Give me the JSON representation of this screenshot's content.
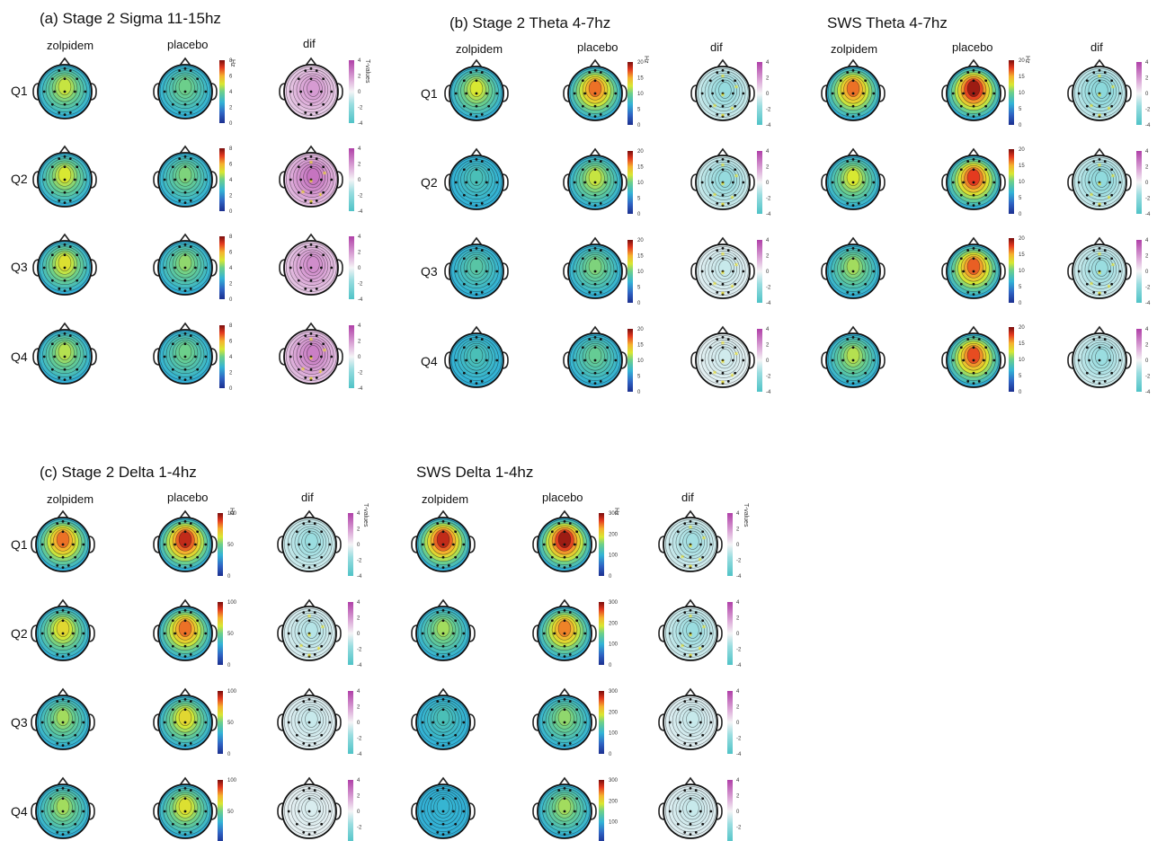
{
  "columns": [
    "zolpidem",
    "placebo",
    "dif"
  ],
  "rows": [
    "Q1",
    "Q2",
    "Q3",
    "Q4"
  ],
  "panels": [
    {
      "title": "(a)   Stage 2     Sigma 11-15hz",
      "unit": "Hz",
      "dif_unit": "T-values",
      "power_ticks": [
        "8",
        "6",
        "4",
        "2",
        "0"
      ],
      "dif_ticks": [
        "4",
        "2",
        "0",
        "-2",
        "-4"
      ],
      "maps": [
        {
          "z": 0.6,
          "p": 0.5,
          "d": 0.74,
          "ds": 0,
          "s": false
        },
        {
          "z": 0.62,
          "p": 0.52,
          "d": 0.85,
          "ds": 1,
          "s": true
        },
        {
          "z": 0.64,
          "p": 0.54,
          "d": 0.78,
          "ds": 0,
          "s": false
        },
        {
          "z": 0.58,
          "p": 0.5,
          "d": 0.82,
          "ds": 2,
          "s": true
        }
      ]
    },
    {
      "title": "(b) Stage 2     Theta 4-7hz",
      "unit": "Hz",
      "power_ticks": [
        "20",
        "15",
        "10",
        "5",
        "0"
      ],
      "dif_ticks": [
        "4",
        "2",
        "0",
        "-2",
        "-4"
      ],
      "maps": [
        {
          "z": 0.62,
          "p": 0.82,
          "d": 0.28,
          "ds": 3,
          "s": true
        },
        {
          "z": 0.4,
          "p": 0.6,
          "d": 0.28,
          "ds": 4,
          "s": true
        },
        {
          "z": 0.44,
          "p": 0.52,
          "d": 0.4,
          "ds": 5,
          "s": true
        },
        {
          "z": 0.4,
          "p": 0.48,
          "d": 0.42,
          "ds": 6,
          "s": true
        }
      ]
    },
    {
      "title": "SWS     Theta 4-7hz",
      "unit": "Hz",
      "power_ticks": [
        "20",
        "15",
        "10",
        "5",
        "0"
      ],
      "dif_ticks": [
        "4",
        "2",
        "0",
        "-2",
        "-4"
      ],
      "maps": [
        {
          "z": 0.82,
          "p": 0.96,
          "d": 0.24,
          "ds": 7,
          "s": true
        },
        {
          "z": 0.62,
          "p": 0.88,
          "d": 0.26,
          "ds": 8,
          "s": true
        },
        {
          "z": 0.56,
          "p": 0.84,
          "d": 0.3,
          "ds": 9,
          "s": true
        },
        {
          "z": 0.58,
          "p": 0.86,
          "d": 0.3,
          "ds": 10,
          "s": false
        }
      ]
    },
    {
      "title": "(c) Stage 2     Delta 1-4hz",
      "unit": "Hz",
      "dif_unit": "T-values",
      "power_ticks": [
        "100",
        "50",
        "0"
      ],
      "dif_ticks": [
        "4",
        "2",
        "0",
        "-2",
        "-4"
      ],
      "maps": [
        {
          "z": 0.82,
          "p": 0.92,
          "d": 0.3,
          "ds": 11,
          "s": false
        },
        {
          "z": 0.66,
          "p": 0.82,
          "d": 0.36,
          "ds": 12,
          "s": true
        },
        {
          "z": 0.56,
          "p": 0.66,
          "d": 0.4,
          "ds": 13,
          "s": false
        },
        {
          "z": 0.56,
          "p": 0.64,
          "d": 0.44,
          "ds": 14,
          "s": false
        }
      ]
    },
    {
      "title": "SWS     Delta 1-4hz",
      "unit": "Hz",
      "dif_unit": "T-values",
      "power_ticks": [
        "300",
        "200",
        "100",
        "0"
      ],
      "dif_ticks": [
        "4",
        "2",
        "0",
        "-2",
        "-4"
      ],
      "maps": [
        {
          "z": 0.92,
          "p": 0.96,
          "d": 0.32,
          "ds": 15,
          "s": true
        },
        {
          "z": 0.56,
          "p": 0.8,
          "d": 0.3,
          "ds": 16,
          "s": true
        },
        {
          "z": 0.4,
          "p": 0.54,
          "d": 0.4,
          "ds": 17,
          "s": false
        },
        {
          "z": 0.34,
          "p": 0.56,
          "d": 0.4,
          "ds": 18,
          "s": false
        }
      ]
    }
  ]
}
